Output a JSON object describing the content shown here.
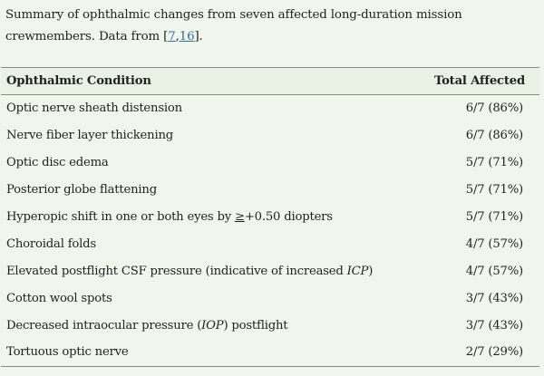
{
  "caption": {
    "text_before": "Summary of ophthalmic changes from seven affected long-duration mission crewmembers. Data from [",
    "ref1": "7",
    "comma": ",",
    "ref2": "16",
    "text_after": "]."
  },
  "table": {
    "headers": {
      "condition": "Ophthalmic Condition",
      "affected": "Total Affected"
    },
    "rows": [
      {
        "condition": "Optic nerve sheath distension",
        "affected": "6/7 (86%)"
      },
      {
        "condition": "Nerve fiber layer thickening",
        "affected": "6/7 (86%)"
      },
      {
        "condition": "Optic disc edema",
        "affected": "5/7 (71%)"
      },
      {
        "condition": "Posterior globe flattening",
        "affected": "5/7 (71%)"
      },
      {
        "condition_pre": "Hyperopic shift in one or both eyes by ",
        "condition_ge": "≥",
        "condition_post": "+0.50 diopters",
        "affected": "5/7 (71%)"
      },
      {
        "condition": "Choroidal folds",
        "affected": "4/7 (57%)"
      },
      {
        "condition_pre": "Elevated postflight CSF pressure (indicative of increased ",
        "condition_em": "ICP",
        "condition_post": ")",
        "affected": "4/7 (57%)"
      },
      {
        "condition": "Cotton wool spots",
        "affected": "3/7 (43%)"
      },
      {
        "condition_pre": "Decreased intraocular pressure (",
        "condition_em": "IOP",
        "condition_post": ") postflight",
        "affected": "3/7 (43%)"
      },
      {
        "condition": "Tortuous optic nerve",
        "affected": "2/7 (29%)"
      }
    ]
  },
  "colors": {
    "background": "#f1f6ec",
    "link": "#2f6ea8",
    "rule": "#8a8a8a"
  }
}
